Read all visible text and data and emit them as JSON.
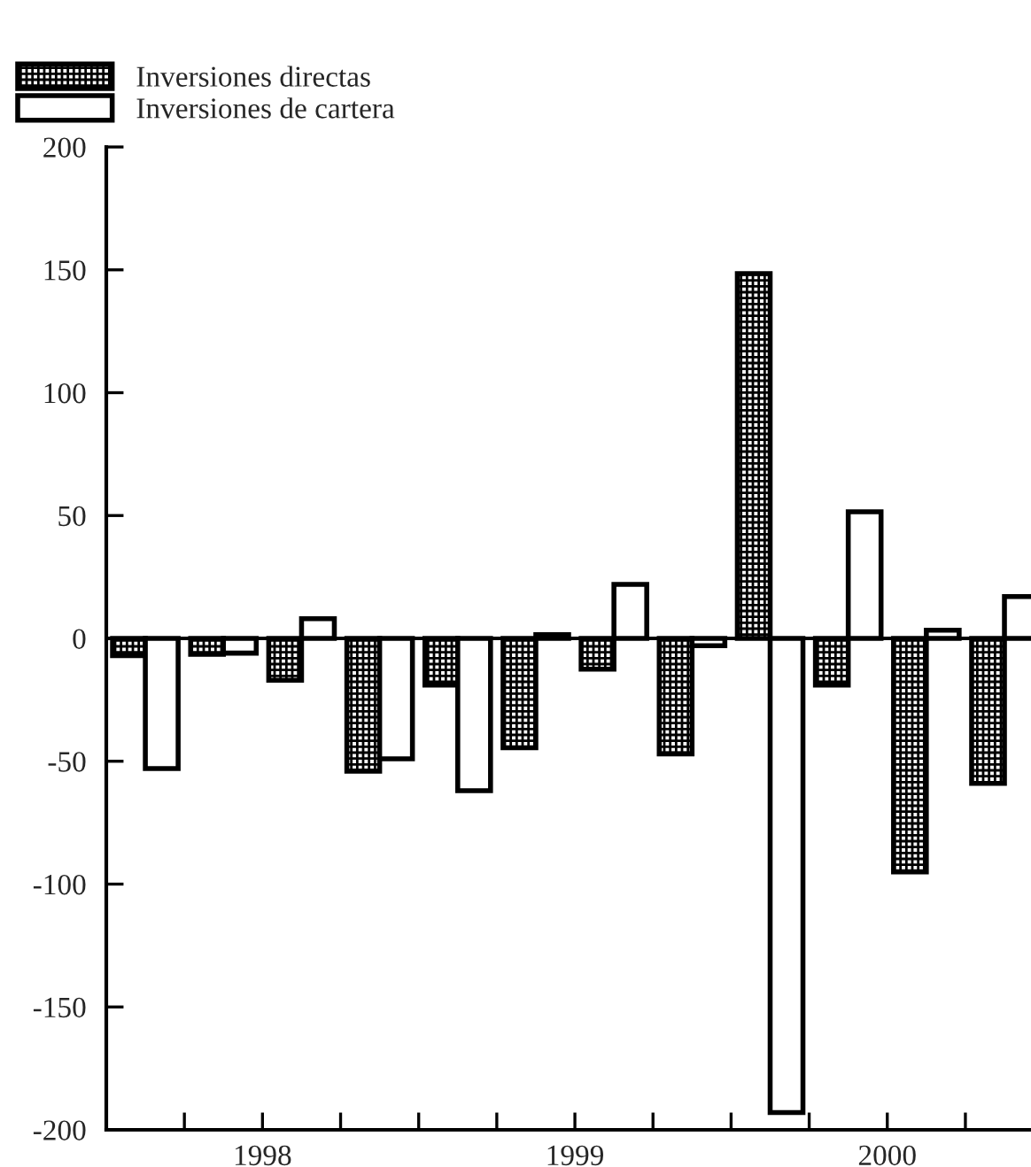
{
  "chart_data": {
    "type": "bar",
    "x": [
      1998.125,
      1998.375,
      1998.625,
      1998.875,
      1999.125,
      1999.375,
      1999.625,
      1999.875,
      2000.125,
      2000.375,
      2000.625,
      2000.875
    ],
    "series": [
      {
        "name": "Inversiones directas",
        "color": "#000000",
        "values": [
          -7,
          -6.5,
          -17,
          -54,
          -19,
          -44.5,
          -12.5,
          -47,
          148.5,
          -19,
          -95,
          -59
        ]
      },
      {
        "name": "Inversiones de cartera",
        "color": "#ffffff",
        "values": [
          -53,
          -6,
          8,
          -49,
          -62,
          1.5,
          22,
          -3,
          -193,
          51.5,
          3.3,
          17
        ]
      }
    ],
    "xlim": [
      1998,
      2000.96
    ],
    "xticks": [
      {
        "value": 1998.25,
        "label": null
      },
      {
        "value": 1998.5,
        "label": "1998"
      },
      {
        "value": 1998.75,
        "label": null
      },
      {
        "value": 1999.0,
        "label": null
      },
      {
        "value": 1999.25,
        "label": null
      },
      {
        "value": 1999.5,
        "label": "1999"
      },
      {
        "value": 1999.75,
        "label": null
      },
      {
        "value": 2000.0,
        "label": null
      },
      {
        "value": 2000.25,
        "label": null
      },
      {
        "value": 2000.5,
        "label": "2000"
      },
      {
        "value": 2000.75,
        "label": null
      }
    ],
    "ylim": [
      -200,
      200
    ],
    "yticks": [
      -200,
      -150,
      -100,
      -50,
      0,
      50,
      100,
      150,
      200
    ],
    "ref_lines": [
      {
        "axis": "y",
        "value": 0,
        "color": "#000000"
      }
    ],
    "grid": false,
    "legend": "top left"
  }
}
